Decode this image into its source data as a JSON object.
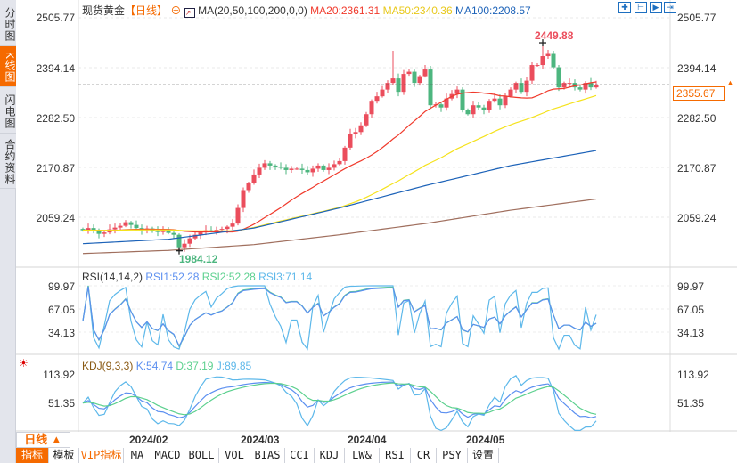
{
  "sidebar": {
    "items": [
      {
        "label": "分时图",
        "active": false
      },
      {
        "label": "K线图",
        "active": true
      },
      {
        "label": "闪电图",
        "active": false
      },
      {
        "label": "合约资料",
        "active": false
      }
    ]
  },
  "header": {
    "symbol": "现货黄金",
    "period": "【日线】",
    "ma_params": "MA(20,50,100,200,0,0)",
    "ma20": "MA20:2361.31",
    "ma50": "MA50:2340.36",
    "ma100": "MA100:2208.57"
  },
  "colors": {
    "up": "#eb4d5c",
    "down": "#4db67f",
    "ma20": "#f03a2c",
    "ma50": "#f5e21c",
    "ma100": "#1c62b8",
    "ma200": "#a06f5e",
    "accent": "#f56a00"
  },
  "main_axis": {
    "labels": [
      "2505.77",
      "2394.14",
      "2282.50",
      "2170.87",
      "2059.24"
    ],
    "values": [
      2505.77,
      2394.14,
      2282.5,
      2170.87,
      2059.24
    ]
  },
  "current_price": "2355.67",
  "high_marker": "2449.88",
  "low_marker": "1984.12",
  "rsi": {
    "title": "RSI(14,14,2)",
    "rsi1": "RSI1:52.28",
    "rsi2": "RSI2:52.28",
    "rsi3": "RSI3:71.14",
    "axis": [
      "99.97",
      "67.05",
      "34.13"
    ]
  },
  "kdj": {
    "title": "KDJ(9,3,3)",
    "k": "K:54.74",
    "d": "D:37.19",
    "j": "J:89.85",
    "axis": [
      "113.92",
      "51.35"
    ]
  },
  "period_button": "日线 ▲",
  "dates": [
    "2024/02",
    "2024/03",
    "2024/04",
    "2024/05"
  ],
  "toolbar": [
    "指标",
    "模板",
    "VIP指标",
    "MA",
    "MACD",
    "BOLL",
    "VOL",
    "BIAS",
    "CCI",
    "KDJ",
    "LW&",
    "RSI",
    "CR",
    "PSY",
    "设置"
  ],
  "chart_data": {
    "type": "candlestick",
    "closes": [
      2030,
      2035,
      2028,
      2022,
      2025,
      2032,
      2036,
      2040,
      2048,
      2042,
      2035,
      2030,
      2034,
      2028,
      2026,
      2030,
      2024,
      2020,
      1992,
      2000,
      2012,
      2020,
      2025,
      2030,
      2028,
      2031,
      2033,
      2038,
      2045,
      2080,
      2120,
      2135,
      2155,
      2170,
      2180,
      2175,
      2172,
      2170,
      2165,
      2168,
      2168,
      2165,
      2160,
      2168,
      2175,
      2165,
      2170,
      2178,
      2185,
      2215,
      2246,
      2250,
      2265,
      2290,
      2320,
      2330,
      2345,
      2360,
      2370,
      2340,
      2380,
      2385,
      2360,
      2375,
      2390,
      2310,
      2312,
      2305,
      2325,
      2335,
      2345,
      2300,
      2290,
      2310,
      2305,
      2300,
      2320,
      2325,
      2310,
      2330,
      2345,
      2360,
      2340,
      2365,
      2400,
      2400,
      2420,
      2425,
      2395,
      2350,
      2360,
      2360,
      2350,
      2345,
      2360,
      2350,
      2355.67
    ],
    "ma100": [
      2000,
      2010,
      2035,
      2080,
      2130,
      2175,
      2208.57
    ],
    "ma200": [
      1978,
      1985,
      1998,
      2020,
      2045,
      2075,
      2100
    ],
    "ylim": [
      1960,
      2520
    ]
  }
}
